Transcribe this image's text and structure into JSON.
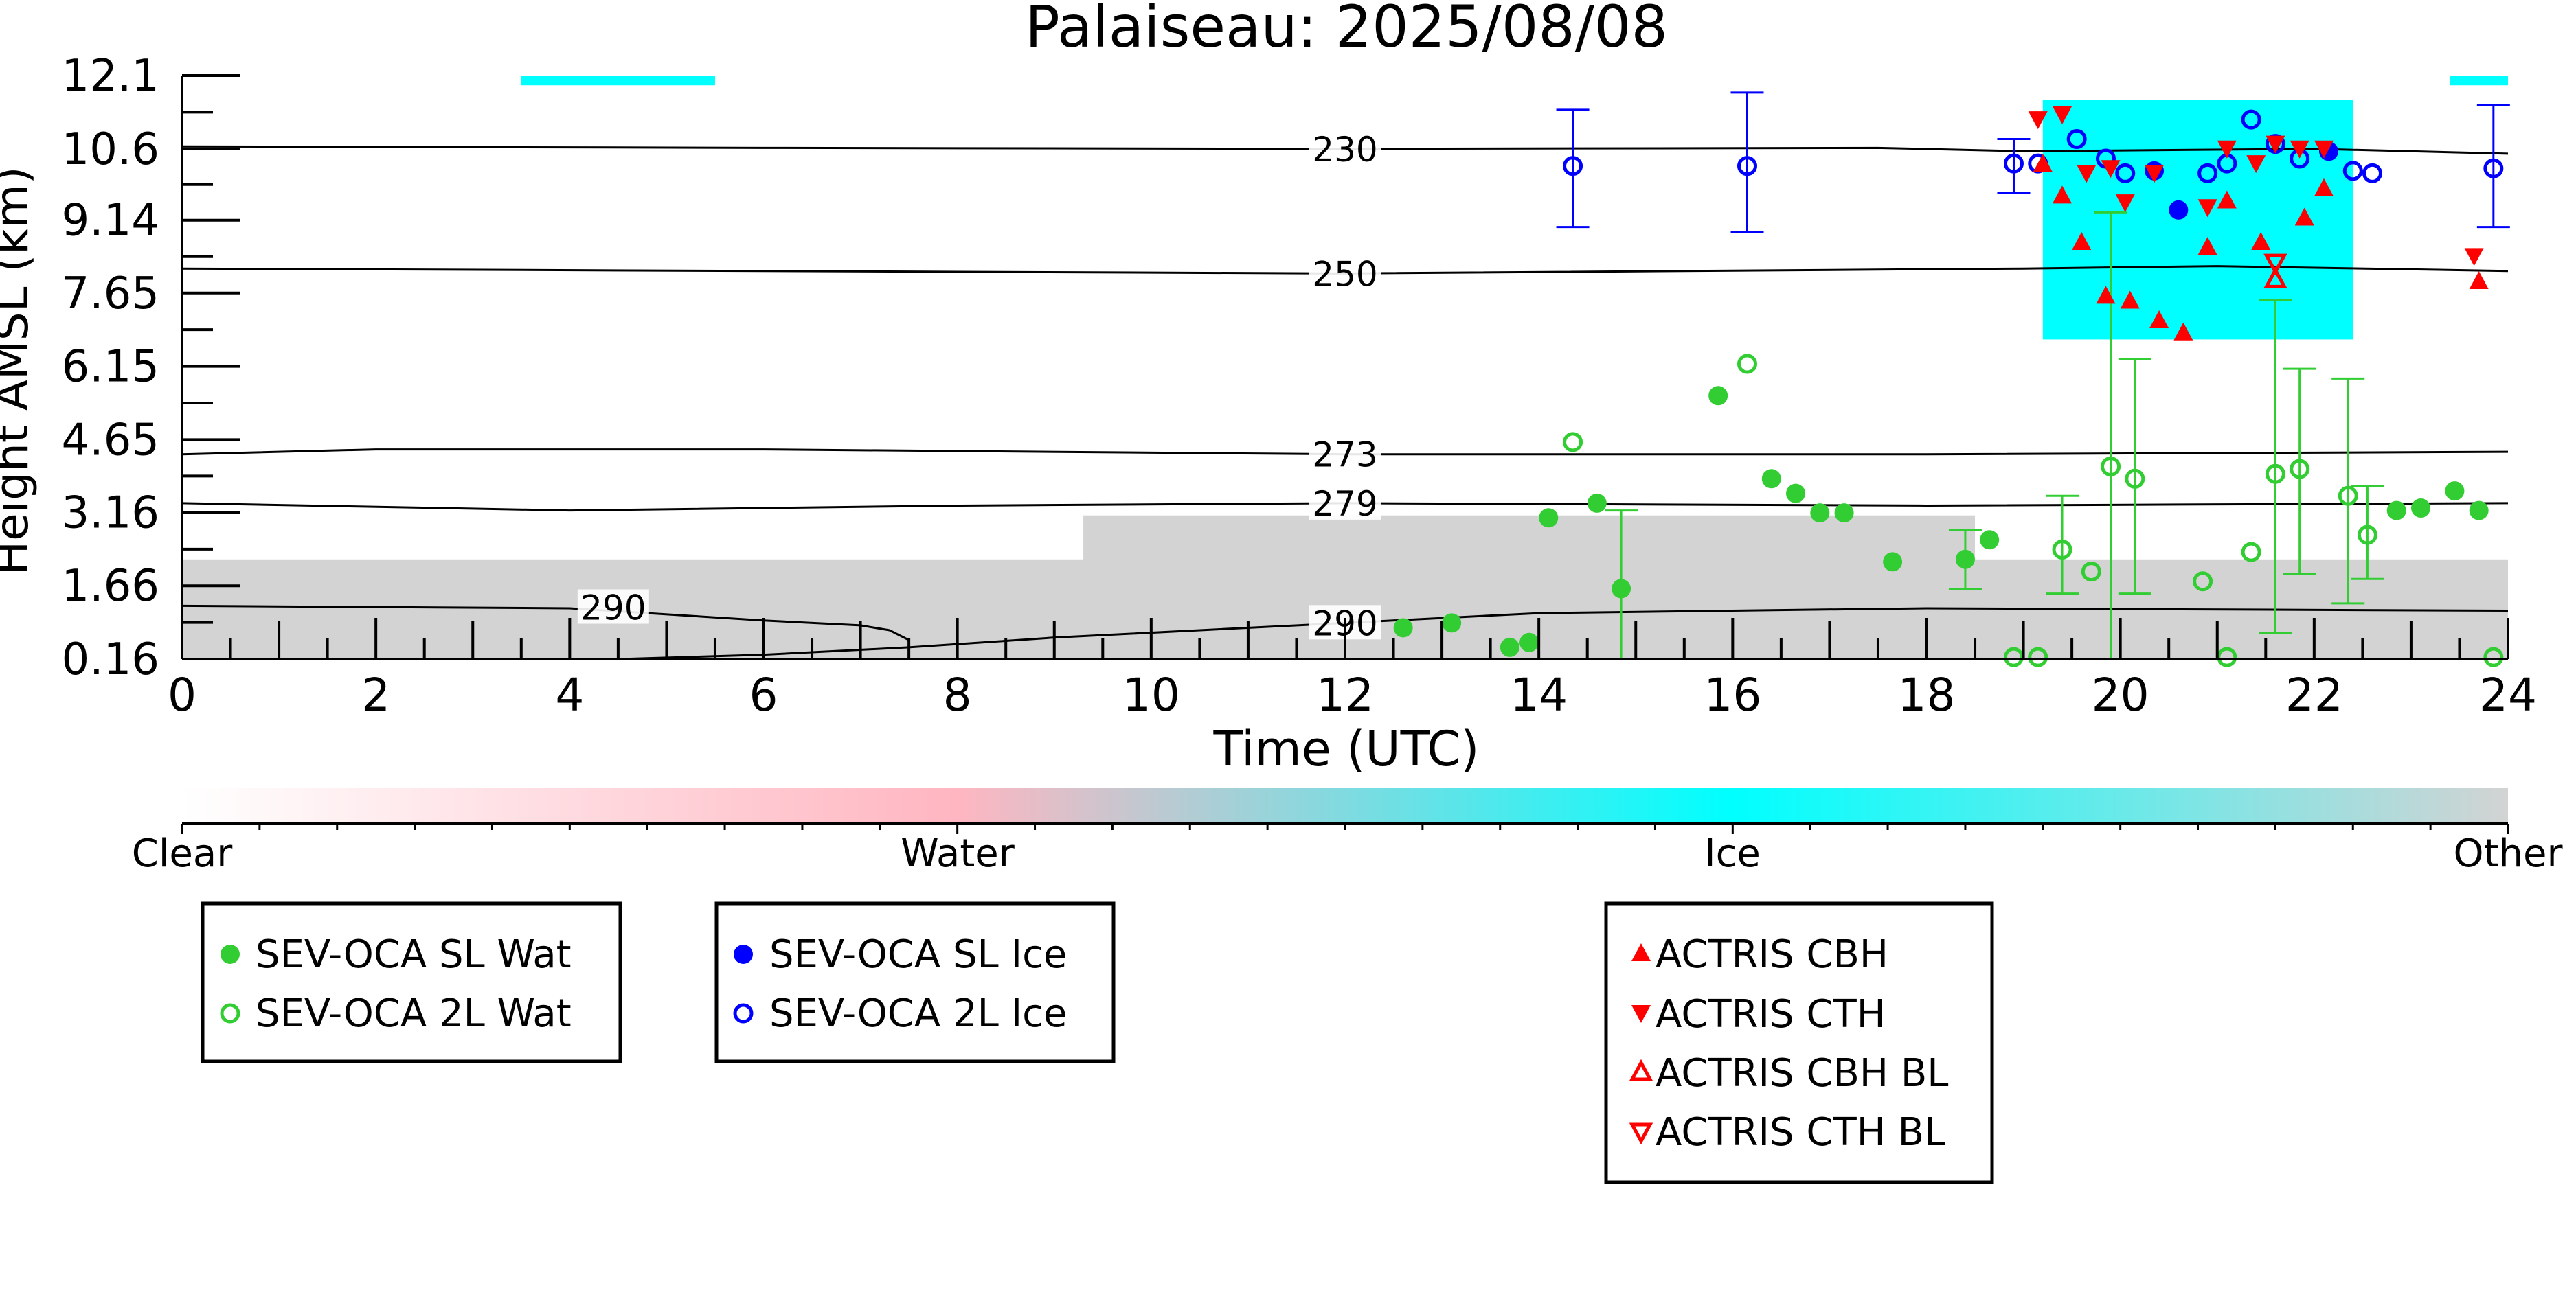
{
  "chart_data": {
    "type": "scatter",
    "title": "Palaiseau: 2025/08/08",
    "xlabel": "Time (UTC)",
    "ylabel": "Height AMSL (km)",
    "xlim": [
      0,
      24
    ],
    "ylim": [
      0.16,
      12.1
    ],
    "x_ticks": [
      "0",
      "2",
      "4",
      "6",
      "8",
      "10",
      "12",
      "14",
      "16",
      "18",
      "20",
      "22",
      "24"
    ],
    "y_ticks": [
      "0.16",
      "1.66",
      "3.16",
      "4.65",
      "6.15",
      "7.65",
      "9.14",
      "10.6",
      "12.1"
    ],
    "colorbar": {
      "labels": [
        "Clear",
        "Water",
        "Ice",
        "Other"
      ],
      "colors": [
        "#ffffff",
        "#ffb6c1",
        "#00ffff",
        "#d3d3d3"
      ]
    },
    "temperature_contours": [
      {
        "label": "230",
        "x": [
          0,
          6,
          12,
          17.5,
          19,
          22,
          24
        ],
        "y": [
          10.65,
          10.62,
          10.6,
          10.62,
          10.55,
          10.6,
          10.5
        ]
      },
      {
        "label": "250",
        "x": [
          0,
          6,
          12,
          19,
          21,
          24
        ],
        "y": [
          8.15,
          8.1,
          8.05,
          8.15,
          8.2,
          8.1
        ]
      },
      {
        "label": "273",
        "x": [
          0,
          2,
          6,
          12,
          18,
          24
        ],
        "y": [
          4.35,
          4.45,
          4.45,
          4.35,
          4.35,
          4.4
        ]
      },
      {
        "label": "279",
        "x": [
          0,
          4,
          8,
          12,
          18,
          24
        ],
        "y": [
          3.35,
          3.2,
          3.3,
          3.35,
          3.3,
          3.35
        ]
      },
      {
        "label": "290",
        "x": [
          0,
          4,
          6,
          7,
          7.3,
          7.5
        ],
        "y": [
          1.25,
          1.2,
          0.95,
          0.85,
          0.75,
          0.55
        ]
      },
      {
        "label": "290",
        "x": [
          4.5,
          6,
          7.5,
          9,
          12,
          14,
          18,
          24
        ],
        "y": [
          0.16,
          0.25,
          0.4,
          0.6,
          0.9,
          1.1,
          1.2,
          1.15
        ]
      }
    ],
    "series": [
      {
        "name": "SEV-OCA SL Wat",
        "color": "#32cd32",
        "marker": "circle-filled",
        "points": [
          {
            "x": 12.6,
            "y": 0.8
          },
          {
            "x": 13.1,
            "y": 0.9
          },
          {
            "x": 13.7,
            "y": 0.4
          },
          {
            "x": 13.9,
            "y": 0.5
          },
          {
            "x": 14.1,
            "y": 3.05
          },
          {
            "x": 14.6,
            "y": 3.35
          },
          {
            "x": 14.85,
            "y": 1.6
          },
          {
            "x": 15.85,
            "y": 5.55
          },
          {
            "x": 16.4,
            "y": 3.85
          },
          {
            "x": 16.65,
            "y": 3.55
          },
          {
            "x": 16.9,
            "y": 3.15
          },
          {
            "x": 17.15,
            "y": 3.15
          },
          {
            "x": 17.65,
            "y": 2.15
          },
          {
            "x": 18.4,
            "y": 2.2
          },
          {
            "x": 18.65,
            "y": 2.6
          },
          {
            "x": 22.85,
            "y": 3.2
          },
          {
            "x": 23.1,
            "y": 3.25
          },
          {
            "x": 23.45,
            "y": 3.6
          },
          {
            "x": 23.7,
            "y": 3.2
          }
        ],
        "errors": [
          {
            "x": 14.85,
            "low": 0.16,
            "high": 3.2
          },
          {
            "x": 18.4,
            "low": 1.6,
            "high": 2.8
          }
        ]
      },
      {
        "name": "SEV-OCA 2L Wat",
        "color": "#32cd32",
        "marker": "circle-open",
        "points": [
          {
            "x": 14.35,
            "y": 4.6
          },
          {
            "x": 16.15,
            "y": 6.2
          },
          {
            "x": 18.9,
            "y": 0.2
          },
          {
            "x": 19.15,
            "y": 0.2
          },
          {
            "x": 19.4,
            "y": 2.4
          },
          {
            "x": 19.7,
            "y": 1.95
          },
          {
            "x": 19.9,
            "y": 4.1
          },
          {
            "x": 20.15,
            "y": 3.85
          },
          {
            "x": 20.85,
            "y": 1.75
          },
          {
            "x": 21.1,
            "y": 0.2
          },
          {
            "x": 21.35,
            "y": 2.35
          },
          {
            "x": 21.6,
            "y": 3.95
          },
          {
            "x": 21.85,
            "y": 4.05
          },
          {
            "x": 22.35,
            "y": 3.5
          },
          {
            "x": 22.55,
            "y": 2.7
          },
          {
            "x": 23.85,
            "y": 0.2
          }
        ],
        "errors": [
          {
            "x": 19.4,
            "low": 1.5,
            "high": 3.5
          },
          {
            "x": 19.9,
            "low": 0.16,
            "high": 9.3
          },
          {
            "x": 20.15,
            "low": 1.5,
            "high": 6.3
          },
          {
            "x": 21.6,
            "low": 0.7,
            "high": 7.5
          },
          {
            "x": 21.85,
            "low": 1.9,
            "high": 6.1
          },
          {
            "x": 22.35,
            "low": 1.3,
            "high": 5.9
          },
          {
            "x": 22.55,
            "low": 1.8,
            "high": 3.7
          }
        ]
      },
      {
        "name": "SEV-OCA SL Ice",
        "color": "#0000ff",
        "marker": "circle-filled",
        "points": [
          {
            "x": 20.35,
            "y": 10.15
          },
          {
            "x": 20.6,
            "y": 9.35
          },
          {
            "x": 22.15,
            "y": 10.55
          }
        ],
        "errors": []
      },
      {
        "name": "SEV-OCA 2L Ice",
        "color": "#0000ff",
        "marker": "circle-open",
        "points": [
          {
            "x": 14.35,
            "y": 10.25
          },
          {
            "x": 16.15,
            "y": 10.25
          },
          {
            "x": 18.9,
            "y": 10.3
          },
          {
            "x": 19.15,
            "y": 10.3
          },
          {
            "x": 19.55,
            "y": 10.8
          },
          {
            "x": 19.85,
            "y": 10.4
          },
          {
            "x": 20.05,
            "y": 10.1
          },
          {
            "x": 20.9,
            "y": 10.1
          },
          {
            "x": 21.1,
            "y": 10.3
          },
          {
            "x": 21.35,
            "y": 11.2
          },
          {
            "x": 21.6,
            "y": 10.7
          },
          {
            "x": 21.85,
            "y": 10.4
          },
          {
            "x": 22.4,
            "y": 10.15
          },
          {
            "x": 22.6,
            "y": 10.1
          },
          {
            "x": 23.85,
            "y": 10.2
          }
        ],
        "errors": [
          {
            "x": 14.35,
            "low": 9.0,
            "high": 11.4
          },
          {
            "x": 16.15,
            "low": 8.9,
            "high": 11.75
          },
          {
            "x": 18.9,
            "low": 9.7,
            "high": 10.8
          },
          {
            "x": 23.85,
            "low": 9.0,
            "high": 11.5
          }
        ]
      },
      {
        "name": "ACTRIS CBH",
        "color": "#ff0000",
        "marker": "triangle-up-filled",
        "points": [
          {
            "x": 19.2,
            "y": 10.3
          },
          {
            "x": 19.4,
            "y": 9.65
          },
          {
            "x": 19.6,
            "y": 8.7
          },
          {
            "x": 19.85,
            "y": 7.6
          },
          {
            "x": 20.1,
            "y": 7.5
          },
          {
            "x": 20.4,
            "y": 7.1
          },
          {
            "x": 20.65,
            "y": 6.85
          },
          {
            "x": 20.9,
            "y": 8.6
          },
          {
            "x": 21.1,
            "y": 9.55
          },
          {
            "x": 21.45,
            "y": 8.7
          },
          {
            "x": 21.9,
            "y": 9.2
          },
          {
            "x": 22.1,
            "y": 9.8
          },
          {
            "x": 23.7,
            "y": 7.9
          }
        ],
        "errors": []
      },
      {
        "name": "ACTRIS CTH",
        "color": "#ff0000",
        "marker": "triangle-down-filled",
        "points": [
          {
            "x": 19.15,
            "y": 11.2
          },
          {
            "x": 19.4,
            "y": 11.3
          },
          {
            "x": 19.65,
            "y": 10.1
          },
          {
            "x": 19.9,
            "y": 10.2
          },
          {
            "x": 20.05,
            "y": 9.5
          },
          {
            "x": 20.35,
            "y": 10.1
          },
          {
            "x": 20.9,
            "y": 9.4
          },
          {
            "x": 21.1,
            "y": 10.6
          },
          {
            "x": 21.4,
            "y": 10.3
          },
          {
            "x": 21.6,
            "y": 10.7
          },
          {
            "x": 21.85,
            "y": 10.6
          },
          {
            "x": 22.1,
            "y": 10.6
          },
          {
            "x": 23.65,
            "y": 8.4
          }
        ],
        "errors": []
      },
      {
        "name": "ACTRIS CBH BL",
        "color": "#ff0000",
        "marker": "triangle-up-open",
        "points": [
          {
            "x": 21.6,
            "y": 7.95
          }
        ],
        "errors": []
      },
      {
        "name": "ACTRIS CTH BL",
        "color": "#ff0000",
        "marker": "triangle-down-open",
        "points": [
          {
            "x": 21.6,
            "y": 8.25
          }
        ],
        "errors": []
      }
    ],
    "background_regions": [
      {
        "class": "Other",
        "x": [
          0,
          24
        ],
        "y": [
          0.16,
          2.2
        ],
        "color": "#d3d3d3"
      },
      {
        "class": "Other",
        "x": [
          9.3,
          18.5
        ],
        "y": [
          2.0,
          3.1
        ],
        "color": "#d3d3d3"
      },
      {
        "class": "Ice",
        "x": [
          19.2,
          22.4
        ],
        "y": [
          6.7,
          11.6
        ],
        "color": "#00ffff"
      },
      {
        "class": "Ice",
        "x": [
          3.5,
          5.5
        ],
        "y": [
          11.9,
          12.1
        ],
        "color": "#00ffff"
      },
      {
        "class": "Ice",
        "x": [
          23.4,
          24
        ],
        "y": [
          11.9,
          12.1
        ],
        "color": "#00ffff"
      }
    ],
    "legend": [
      {
        "entries": [
          "SEV-OCA SL Wat",
          "SEV-OCA 2L Wat"
        ]
      },
      {
        "entries": [
          "SEV-OCA SL Ice",
          "SEV-OCA 2L Ice"
        ]
      },
      {
        "entries": [
          "ACTRIS CBH",
          "ACTRIS CTH",
          "ACTRIS CBH BL",
          "ACTRIS CTH BL"
        ]
      }
    ]
  }
}
